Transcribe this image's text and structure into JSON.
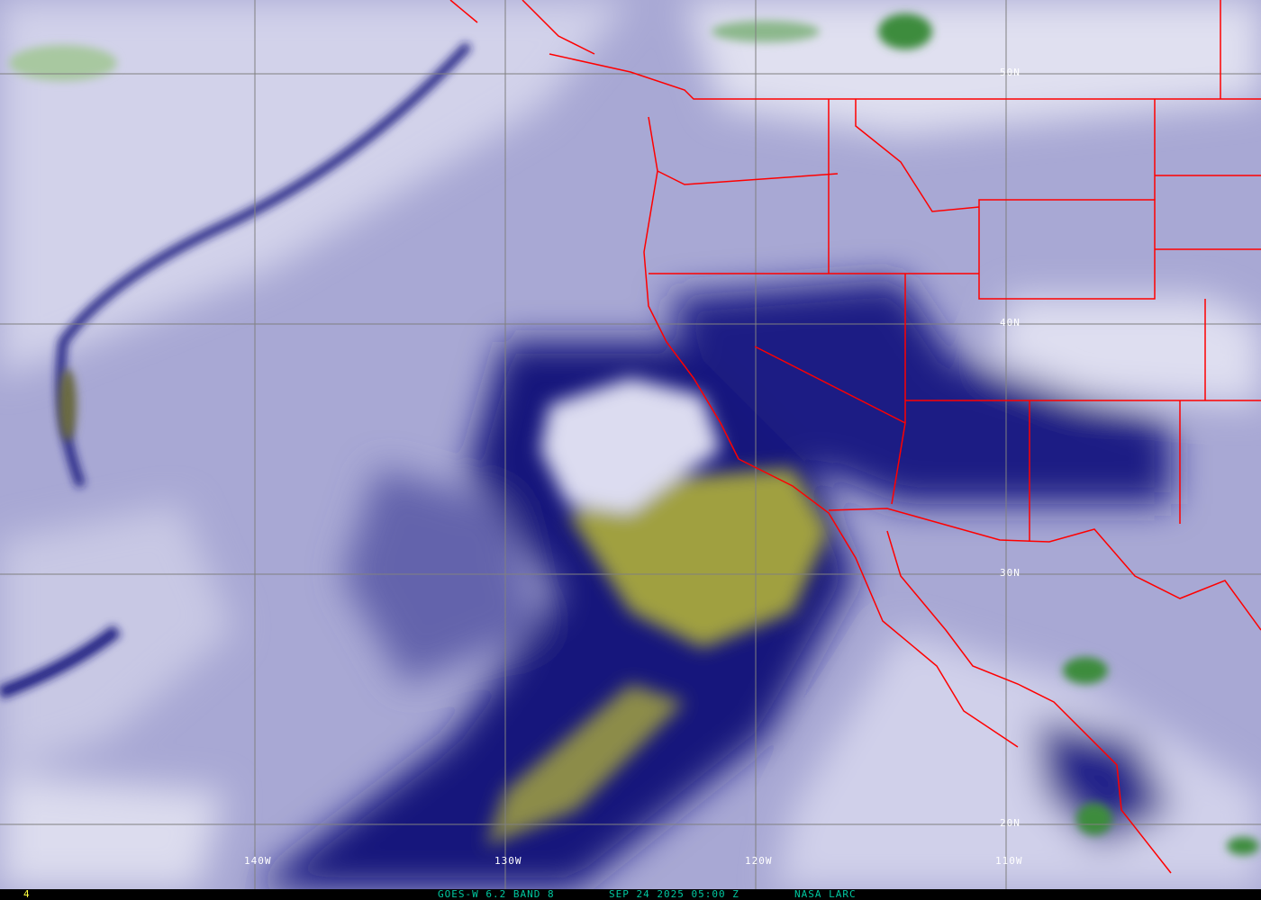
{
  "map": {
    "longitude_labels": [
      "140W",
      "130W",
      "120W",
      "110W"
    ],
    "latitude_labels": [
      "50N",
      "40N",
      "30N",
      "20N"
    ],
    "colors": {
      "moist": "#d6d6ec",
      "mid": "#8a8ac4",
      "dry": "#0c0c78",
      "very_dry": "#a4a440",
      "cold_cloud": "#3c8c3c",
      "borders": "#ff0000",
      "grid": "#808080"
    }
  },
  "caption": {
    "frame": "4",
    "satellite": "GOES-W 6.2 BAND 8",
    "datetime": "SEP 24 2025 05:00 Z",
    "source": "NASA LARC",
    "text_color": "#00c8a0",
    "frame_color": "#ffff40"
  }
}
